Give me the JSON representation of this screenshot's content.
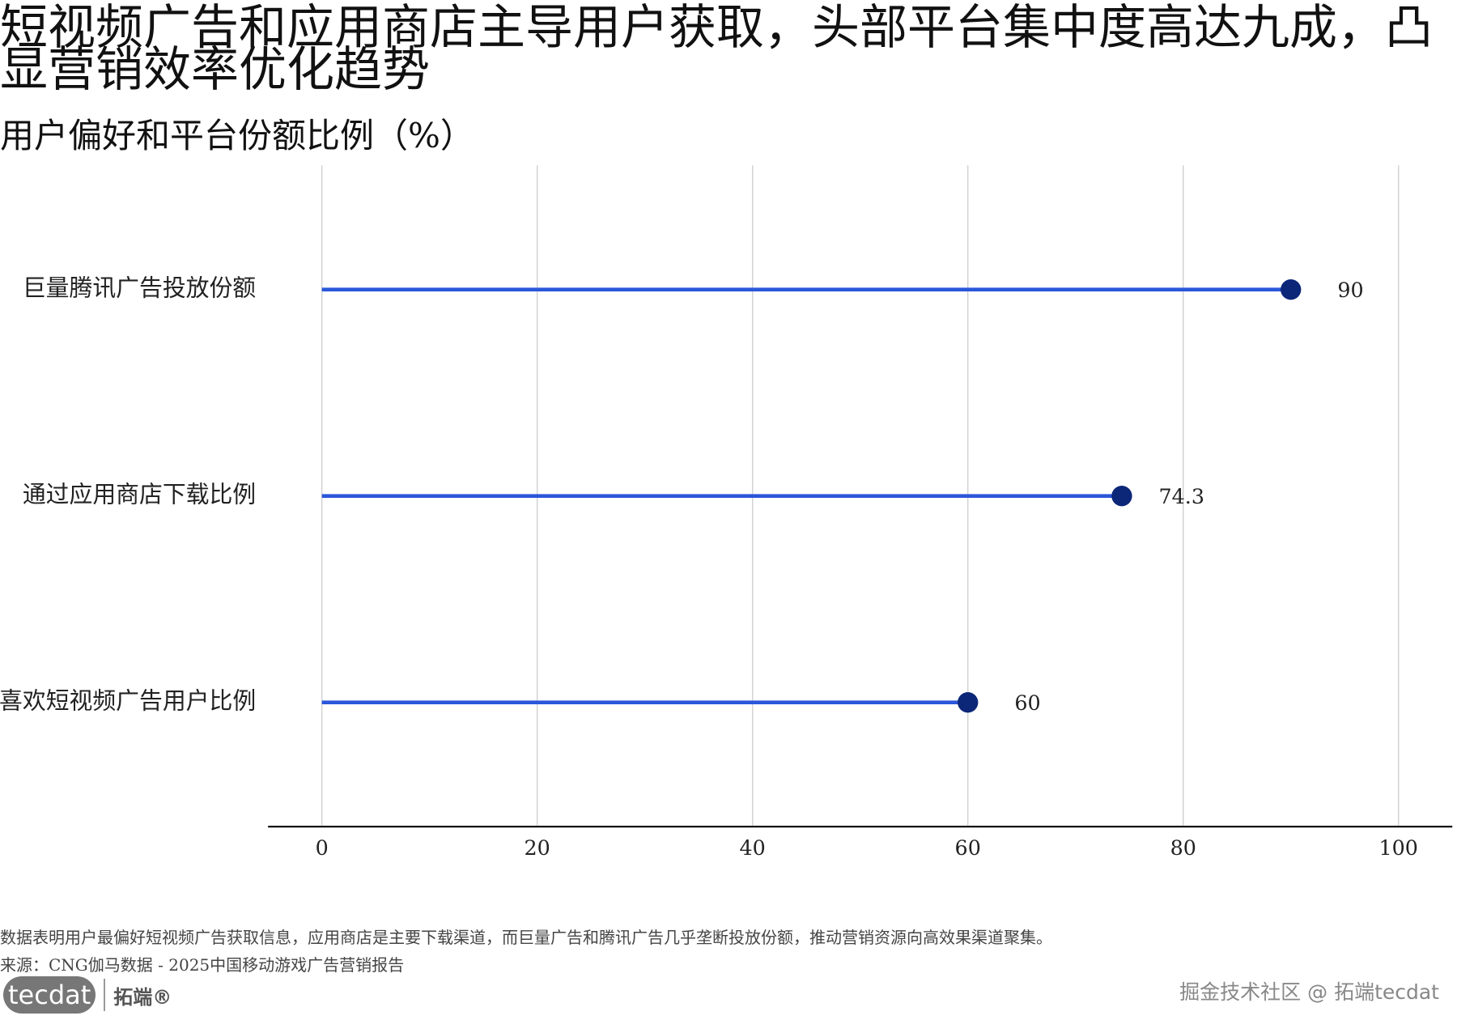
{
  "chart_data": {
    "type": "lollipop",
    "title": "短视频广告和应用商店主导用户获取，头部平台集中度高达九成，凸显营销效率优化趋势",
    "subtitle": "用户偏好和平台份额比例（%）",
    "categories": [
      "巨量腾讯广告投放份额",
      "通过应用商店下载比例",
      "喜欢短视频广告用户比例"
    ],
    "values": [
      90,
      74.3,
      60
    ],
    "stem_color": "#2b57d9",
    "dot_color": "#0c2678",
    "label_color": "#24408e",
    "xlim": [
      -5,
      105
    ],
    "xticks": [
      0,
      20,
      40,
      60,
      80,
      100
    ],
    "grid": true,
    "note": "数据表明用户最偏好短视频广告获取信息，应用商店是主要下载渠道，而巨量广告和腾讯广告几乎垄断投放份额，推动营销资源向高效果渠道聚集。",
    "source": "来源：CNG伽马数据 - 2025中国移动游戏广告营销报告",
    "logo": "tecdat",
    "logo_cn": "拓端®",
    "watermark": "掘金技术社区 @ 拓端tecdat"
  }
}
